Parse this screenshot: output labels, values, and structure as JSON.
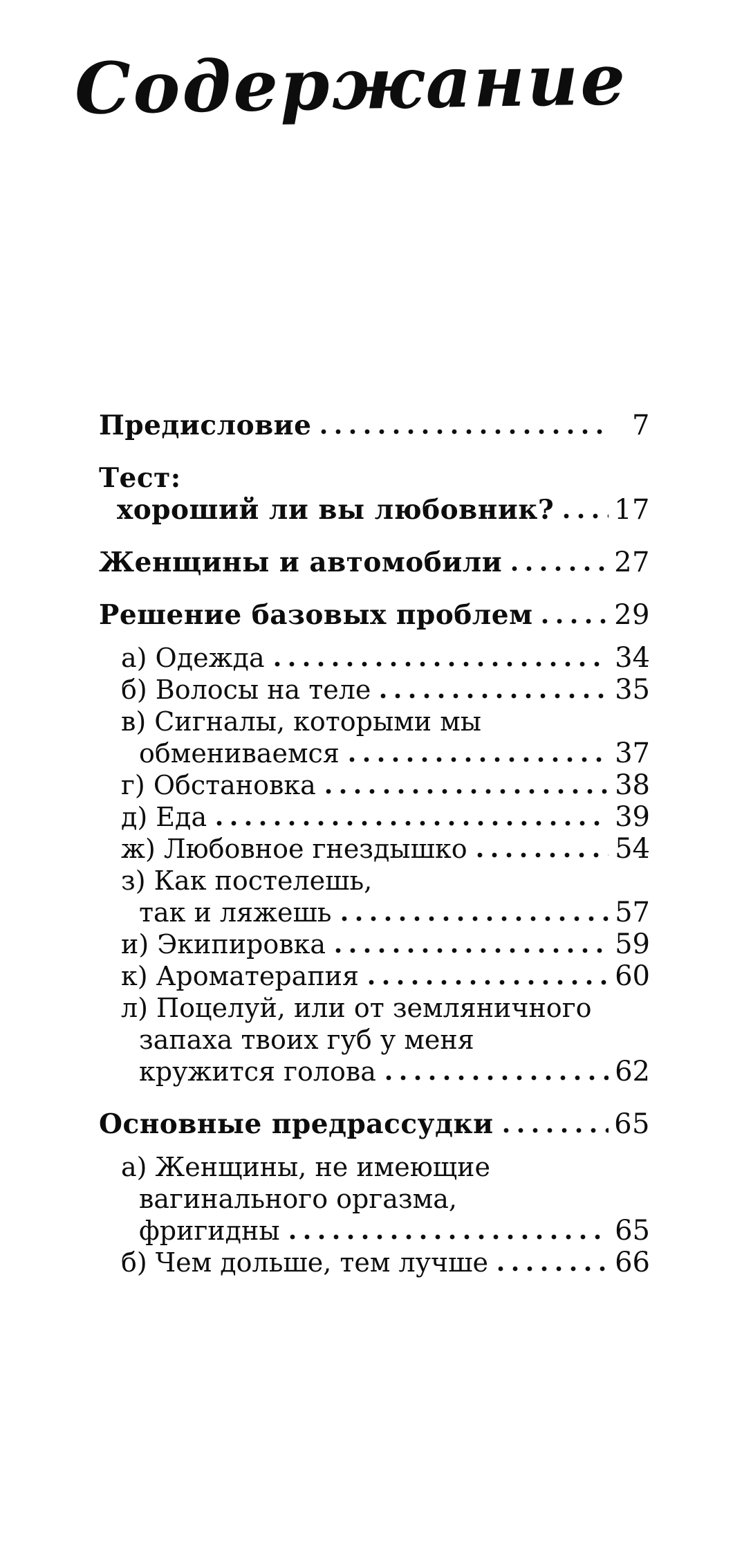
{
  "title": "Содержание",
  "colors": {
    "paper": "#ffffff",
    "ink": "#0d0d0d"
  },
  "toc": {
    "entries": [
      {
        "level": "h",
        "lines": [
          "Предисловие"
        ],
        "page": "7"
      },
      {
        "level": "h",
        "lines": [
          "Тест:",
          "хороший ли вы любовник?"
        ],
        "page": "17"
      },
      {
        "level": "h",
        "lines": [
          "Женщины и автомобили"
        ],
        "page": "27"
      },
      {
        "level": "h",
        "lines": [
          "Решение базовых проблем"
        ],
        "page": "29"
      },
      {
        "level": "sub",
        "lines": [
          "а) Одежда"
        ],
        "page": "34"
      },
      {
        "level": "sub",
        "lines": [
          "б) Волосы на теле"
        ],
        "page": "35"
      },
      {
        "level": "sub",
        "lines": [
          "в) Сигналы, которыми мы",
          "обмениваемся"
        ],
        "page": "37"
      },
      {
        "level": "sub",
        "lines": [
          "г) Обстановка"
        ],
        "page": "38"
      },
      {
        "level": "sub",
        "lines": [
          "д) Еда"
        ],
        "page": "39"
      },
      {
        "level": "sub",
        "lines": [
          "ж) Любовное гнездышко"
        ],
        "page": "54"
      },
      {
        "level": "sub",
        "lines": [
          "з) Как постелешь,",
          "так и ляжешь"
        ],
        "page": "57"
      },
      {
        "level": "sub",
        "lines": [
          "и) Экипировка"
        ],
        "page": "59"
      },
      {
        "level": "sub",
        "lines": [
          "к) Ароматерапия"
        ],
        "page": "60"
      },
      {
        "level": "sub",
        "lines": [
          "л) Поцелуй, или от земляничного",
          "запаха твоих губ у меня",
          "кружится голова"
        ],
        "page": "62"
      },
      {
        "level": "h",
        "lines": [
          "Основные предрассудки"
        ],
        "page": "65"
      },
      {
        "level": "sub",
        "lines": [
          "а) Женщины, не имеющие",
          "вагинального оргазма,",
          "фригидны"
        ],
        "page": "65"
      },
      {
        "level": "sub",
        "lines": [
          "б) Чем дольше, тем лучше"
        ],
        "page": "66"
      }
    ]
  }
}
